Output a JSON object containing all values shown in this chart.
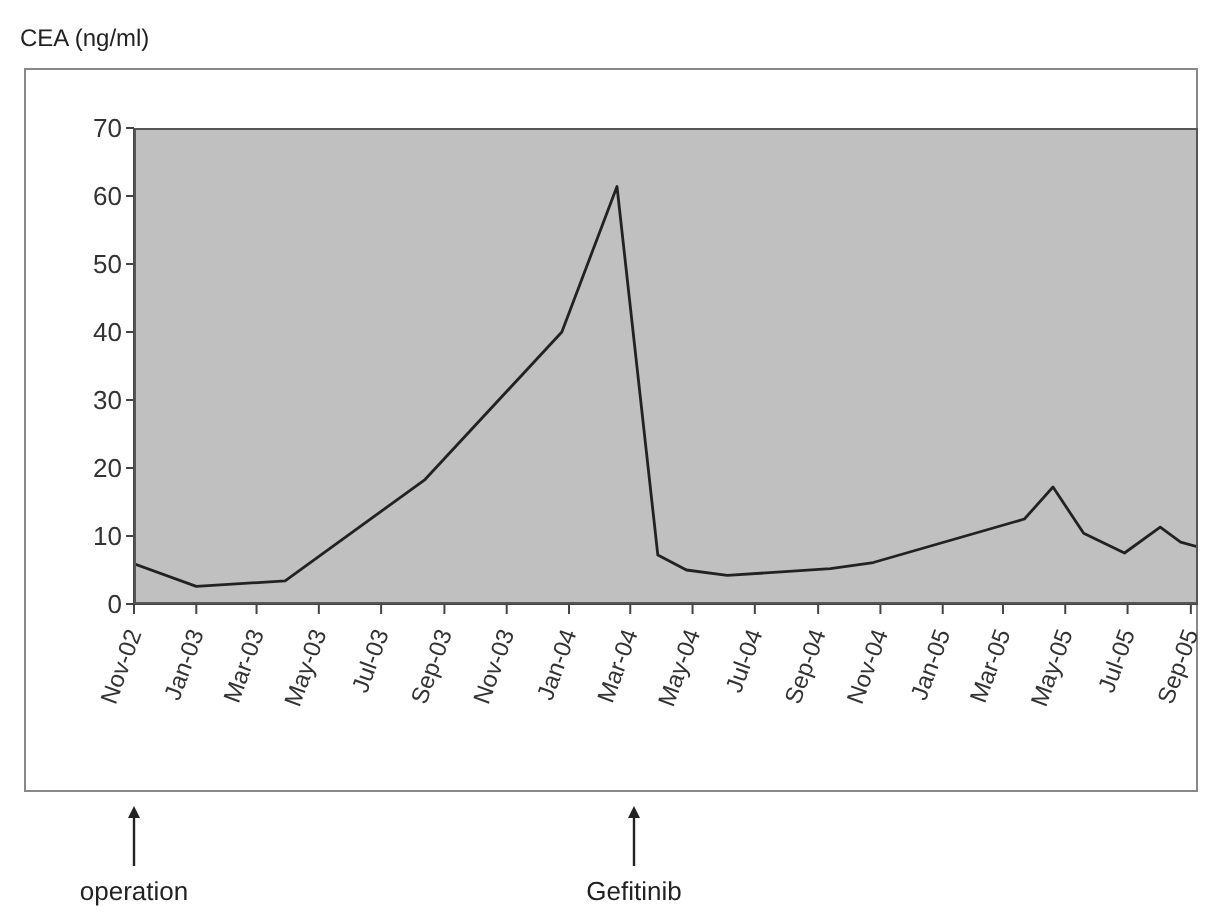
{
  "chart_data": {
    "type": "line",
    "ylabel": "CEA (ng/ml)",
    "x": [
      "2002-11-01",
      "2003-01-01",
      "2003-03-29",
      "2003-08-13",
      "2003-12-25",
      "2004-02-17",
      "2004-03-28",
      "2004-04-25",
      "2004-06-04",
      "2004-09-13",
      "2004-10-25",
      "2005-03-22",
      "2005-04-19",
      "2005-05-19",
      "2005-06-28",
      "2005-08-02",
      "2005-08-22",
      "2005-09-08"
    ],
    "series": [
      {
        "color": "#222222",
        "values": [
          5.9,
          2.6,
          3.4,
          18.3,
          40,
          61.4,
          7.2,
          5.0,
          4.2,
          5.2,
          6.1,
          12.5,
          17.2,
          10.4,
          7.5,
          11.3,
          9.1,
          8.4
        ]
      }
    ],
    "xlim": [
      "2002-11-01",
      "2005-09-08"
    ],
    "xticks": [
      {
        "value": "2002-11",
        "label": "Nov-02"
      },
      {
        "value": "2003-01",
        "label": "Jan-03"
      },
      {
        "value": "2003-03",
        "label": "Mar-03"
      },
      {
        "value": "2003-05",
        "label": "May-03"
      },
      {
        "value": "2003-07",
        "label": "Jul-03"
      },
      {
        "value": "2003-09",
        "label": "Sep-03"
      },
      {
        "value": "2003-11",
        "label": "Nov-03"
      },
      {
        "value": "2004-01",
        "label": "Jan-04"
      },
      {
        "value": "2004-03",
        "label": "Mar-04"
      },
      {
        "value": "2004-05",
        "label": "May-04"
      },
      {
        "value": "2004-07",
        "label": "Jul-04"
      },
      {
        "value": "2004-09",
        "label": "Sep-04"
      },
      {
        "value": "2004-11",
        "label": "Nov-04"
      },
      {
        "value": "2005-01",
        "label": "Jan-05"
      },
      {
        "value": "2005-03",
        "label": "Mar-05"
      },
      {
        "value": "2005-05",
        "label": "May-05"
      },
      {
        "value": "2005-07",
        "label": "Jul-05"
      },
      {
        "value": "2005-09",
        "label": "Sep-05"
      }
    ],
    "ylim": [
      0,
      70
    ],
    "yticks": [
      0,
      10,
      20,
      30,
      40,
      50,
      60,
      70
    ],
    "marker": "none",
    "line_style": "solid",
    "legend": false,
    "grid": false,
    "annotations": [
      {
        "text": "operation",
        "x": "2002-11-01"
      },
      "Gefitinib"
    ]
  }
}
